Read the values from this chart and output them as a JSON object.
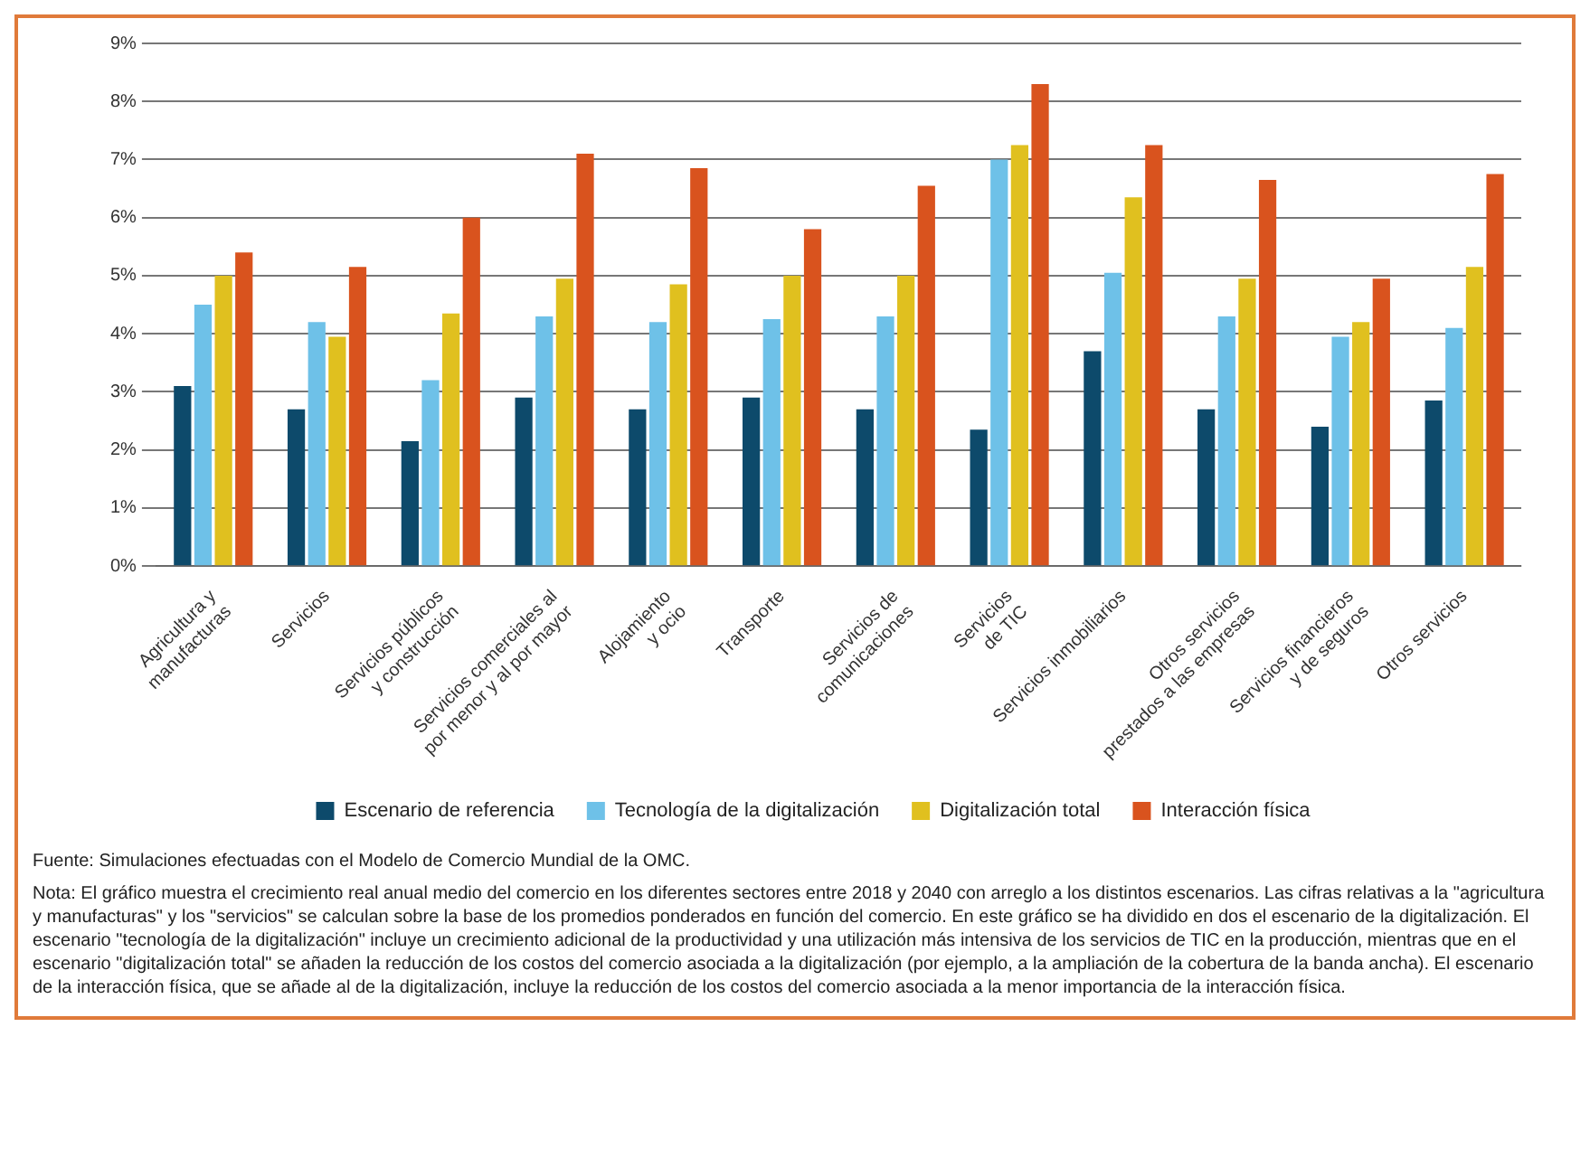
{
  "chart_data": {
    "type": "bar",
    "categories": [
      "Agricultura y manufacturas",
      "Servicios",
      "Servicios públicos y construcción",
      "Servicios comerciales al por menor y al por mayor",
      "Alojamiento y ocio",
      "Transporte",
      "Servicios de comunicaciones",
      "Servicios de TIC",
      "Servicios inmobiliarios",
      "Otros servicios prestados a las empresas",
      "Servicios financieros y de seguros",
      "Otros servicios"
    ],
    "series": [
      {
        "name": "Escenario de referencia",
        "color": "#0d4a6b",
        "values": [
          3.1,
          2.7,
          2.15,
          2.9,
          2.7,
          2.9,
          2.7,
          2.35,
          3.7,
          2.7,
          2.4,
          2.85
        ]
      },
      {
        "name": "Tecnología de la digitalización",
        "color": "#6ec1e8",
        "values": [
          4.5,
          4.2,
          3.2,
          4.3,
          4.2,
          4.25,
          4.3,
          7.0,
          5.05,
          4.3,
          3.95,
          4.1
        ]
      },
      {
        "name": "Digitalización total",
        "color": "#e0c01f",
        "values": [
          5.0,
          3.95,
          4.35,
          4.95,
          4.85,
          5.0,
          5.0,
          7.25,
          6.35,
          4.95,
          4.2,
          5.15
        ]
      },
      {
        "name": "Interacción física",
        "color": "#d9531e",
        "values": [
          5.4,
          5.15,
          6.0,
          7.1,
          6.85,
          5.8,
          6.55,
          8.3,
          7.25,
          6.65,
          4.95,
          6.75
        ]
      }
    ],
    "ylim": [
      0,
      9
    ],
    "yticks": [
      {
        "value": 0,
        "label": "0%"
      },
      {
        "value": 1,
        "label": "1%"
      },
      {
        "value": 2,
        "label": "2%"
      },
      {
        "value": 3,
        "label": "3%"
      },
      {
        "value": 4,
        "label": "4%"
      },
      {
        "value": 5,
        "label": "5%"
      },
      {
        "value": 6,
        "label": "6%"
      },
      {
        "value": 7,
        "label": "7%"
      },
      {
        "value": 8,
        "label": "8%"
      },
      {
        "value": 9,
        "label": "9%"
      }
    ],
    "grid": "y",
    "legend": "bottom",
    "annotations": [
      "Fuente: Simulaciones efectuadas con el Modelo de Comercio Mundial de la OMC.",
      "Nota: El gráfico muestra el crecimiento real anual medio del comercio en los diferentes sectores entre 2018 y 2040 con arreglo a los distintos escenarios. Las cifras relativas a la \"agricultura y manufacturas\" y los \"servicios\" se calculan sobre la base de los promedios ponderados en función del comercio. En este gráfico se ha dividido en dos el escenario de la digitalización. El escenario \"tecnología de la digitalización\" incluye un crecimiento adicional de la productividad y una utilización más intensiva de los servicios de TIC en la producción, mientras que en el escenario \"digitalización total\" se añaden la reducción de los costos del comercio asociada a la digitalización (por ejemplo, a la ampliación de la cobertura de la banda ancha). El escenario de la interacción física, que se añade al de la digitalización, incluye la reducción de los costos del comercio asociada a la menor importancia de la interacción física."
    ]
  }
}
